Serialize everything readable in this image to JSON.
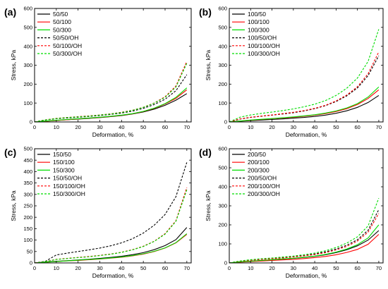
{
  "chart_data": [
    {
      "type": "line",
      "panel_label": "(a)",
      "xlabel": "Deformation, %",
      "ylabel": "Stress, kPa",
      "xlim": [
        0,
        72
      ],
      "ylim": [
        0,
        600
      ],
      "xticks": [
        0,
        10,
        20,
        30,
        40,
        50,
        60,
        70
      ],
      "yticks": [
        0,
        100,
        200,
        300,
        400,
        500,
        600
      ],
      "legend_position": "top-left",
      "x": [
        0,
        5,
        10,
        15,
        20,
        25,
        30,
        35,
        40,
        45,
        50,
        55,
        60,
        65,
        70
      ],
      "series": [
        {
          "name": "50/50",
          "color": "#000000",
          "dashed": false,
          "values": [
            0,
            4,
            8,
            12,
            15,
            19,
            23,
            28,
            34,
            42,
            53,
            68,
            88,
            115,
            150
          ]
        },
        {
          "name": "50/100",
          "color": "#ff0000",
          "dashed": false,
          "values": [
            0,
            4,
            8,
            12,
            16,
            20,
            24,
            29,
            35,
            43,
            55,
            72,
            95,
            125,
            170
          ]
        },
        {
          "name": "50/300",
          "color": "#00dd00",
          "dashed": false,
          "values": [
            0,
            5,
            9,
            13,
            17,
            21,
            25,
            30,
            36,
            44,
            56,
            73,
            97,
            130,
            180
          ]
        },
        {
          "name": "50/50/OH",
          "color": "#000000",
          "dashed": true,
          "values": [
            0,
            10,
            17,
            21,
            25,
            29,
            34,
            40,
            47,
            57,
            72,
            92,
            120,
            165,
            250
          ]
        },
        {
          "name": "50/100/OH",
          "color": "#ff0000",
          "dashed": true,
          "values": [
            0,
            11,
            19,
            24,
            28,
            32,
            37,
            43,
            51,
            62,
            78,
            100,
            133,
            190,
            320
          ]
        },
        {
          "name": "50/300/OH",
          "color": "#00dd00",
          "dashed": true,
          "values": [
            0,
            11,
            18,
            23,
            27,
            31,
            36,
            42,
            50,
            61,
            77,
            99,
            130,
            185,
            310
          ]
        }
      ]
    },
    {
      "type": "line",
      "panel_label": "(b)",
      "xlabel": "Deformation, %",
      "ylabel": "Stress, kPa",
      "xlim": [
        0,
        72
      ],
      "ylim": [
        0,
        600
      ],
      "xticks": [
        0,
        10,
        20,
        30,
        40,
        50,
        60,
        70
      ],
      "yticks": [
        0,
        100,
        200,
        300,
        400,
        500,
        600
      ],
      "legend_position": "top-left",
      "x": [
        0,
        5,
        10,
        15,
        20,
        25,
        30,
        35,
        40,
        45,
        50,
        55,
        60,
        65,
        70
      ],
      "series": [
        {
          "name": "100/50",
          "color": "#000000",
          "dashed": false,
          "values": [
            0,
            4,
            7,
            10,
            13,
            16,
            20,
            24,
            29,
            36,
            46,
            59,
            77,
            103,
            140
          ]
        },
        {
          "name": "100/100",
          "color": "#ff0000",
          "dashed": false,
          "values": [
            0,
            5,
            9,
            13,
            17,
            21,
            25,
            30,
            36,
            44,
            55,
            70,
            92,
            124,
            170
          ]
        },
        {
          "name": "100/300",
          "color": "#00dd00",
          "dashed": false,
          "values": [
            0,
            5,
            10,
            14,
            18,
            22,
            27,
            32,
            38,
            47,
            58,
            74,
            97,
            132,
            185
          ]
        },
        {
          "name": "100/50/OH",
          "color": "#000000",
          "dashed": true,
          "values": [
            0,
            15,
            24,
            30,
            36,
            42,
            49,
            58,
            70,
            86,
            108,
            138,
            180,
            245,
            350
          ]
        },
        {
          "name": "100/100/OH",
          "color": "#ff0000",
          "dashed": true,
          "values": [
            0,
            16,
            25,
            31,
            37,
            44,
            51,
            60,
            72,
            88,
            111,
            142,
            186,
            255,
            370
          ]
        },
        {
          "name": "100/300/OH",
          "color": "#00dd00",
          "dashed": true,
          "values": [
            0,
            25,
            37,
            45,
            52,
            60,
            69,
            80,
            94,
            113,
            140,
            178,
            232,
            320,
            490
          ]
        }
      ]
    },
    {
      "type": "line",
      "panel_label": "(c)",
      "xlabel": "Deformation, %",
      "ylabel": "Stress, kPa",
      "xlim": [
        0,
        72
      ],
      "ylim": [
        0,
        500
      ],
      "xticks": [
        0,
        10,
        20,
        30,
        40,
        50,
        60,
        70
      ],
      "yticks": [
        0,
        50,
        100,
        150,
        200,
        250,
        300,
        350,
        400,
        450,
        500
      ],
      "legend_position": "top-left",
      "x": [
        0,
        5,
        10,
        15,
        20,
        25,
        30,
        35,
        40,
        45,
        50,
        55,
        60,
        65,
        70
      ],
      "series": [
        {
          "name": "150/50",
          "color": "#000000",
          "dashed": false,
          "values": [
            0,
            4,
            7,
            10,
            13,
            16,
            20,
            24,
            29,
            36,
            45,
            58,
            76,
            102,
            155
          ]
        },
        {
          "name": "150/100",
          "color": "#ff0000",
          "dashed": false,
          "values": [
            0,
            3,
            6,
            9,
            11,
            14,
            17,
            21,
            25,
            31,
            39,
            50,
            65,
            88,
            125
          ]
        },
        {
          "name": "150/300",
          "color": "#00dd00",
          "dashed": false,
          "values": [
            0,
            3,
            6,
            9,
            12,
            15,
            18,
            22,
            26,
            32,
            40,
            51,
            66,
            89,
            128
          ]
        },
        {
          "name": "150/50/OH",
          "color": "#000000",
          "dashed": true,
          "values": [
            0,
            7,
            35,
            43,
            50,
            57,
            65,
            75,
            88,
            106,
            131,
            165,
            212,
            290,
            440
          ]
        },
        {
          "name": "150/100/OH",
          "color": "#ff0000",
          "dashed": true,
          "values": [
            0,
            6,
            16,
            20,
            24,
            28,
            33,
            39,
            47,
            58,
            73,
            95,
            128,
            185,
            330
          ]
        },
        {
          "name": "150/300/OH",
          "color": "#00dd00",
          "dashed": true,
          "values": [
            0,
            6,
            15,
            19,
            23,
            27,
            32,
            38,
            46,
            57,
            72,
            94,
            126,
            182,
            320
          ]
        }
      ]
    },
    {
      "type": "line",
      "panel_label": "(d)",
      "xlabel": "Deformation, %",
      "ylabel": "Stress, kPa",
      "xlim": [
        0,
        72
      ],
      "ylim": [
        0,
        600
      ],
      "xticks": [
        0,
        10,
        20,
        30,
        40,
        50,
        60,
        70
      ],
      "yticks": [
        0,
        100,
        200,
        300,
        400,
        500,
        600
      ],
      "legend_position": "top-left",
      "x": [
        0,
        5,
        10,
        15,
        20,
        25,
        30,
        35,
        40,
        45,
        50,
        55,
        60,
        65,
        70
      ],
      "series": [
        {
          "name": "200/50",
          "color": "#000000",
          "dashed": false,
          "values": [
            0,
            5,
            9,
            13,
            16,
            20,
            24,
            29,
            35,
            43,
            54,
            69,
            90,
            120,
            170
          ]
        },
        {
          "name": "200/100",
          "color": "#ff0000",
          "dashed": false,
          "values": [
            0,
            4,
            7,
            10,
            13,
            16,
            19,
            23,
            28,
            34,
            43,
            55,
            71,
            98,
            150
          ]
        },
        {
          "name": "200/300",
          "color": "#00dd00",
          "dashed": false,
          "values": [
            0,
            5,
            9,
            13,
            17,
            21,
            25,
            30,
            36,
            45,
            57,
            73,
            96,
            131,
            200
          ]
        },
        {
          "name": "200/50/OH",
          "color": "#000000",
          "dashed": true,
          "values": [
            0,
            9,
            15,
            20,
            24,
            28,
            33,
            39,
            47,
            58,
            73,
            93,
            122,
            172,
            280
          ]
        },
        {
          "name": "200/100/OH",
          "color": "#ff0000",
          "dashed": true,
          "values": [
            0,
            8,
            14,
            18,
            22,
            26,
            31,
            37,
            44,
            54,
            68,
            87,
            115,
            162,
            260
          ]
        },
        {
          "name": "200/300/OH",
          "color": "#00dd00",
          "dashed": true,
          "values": [
            0,
            10,
            17,
            22,
            26,
            31,
            36,
            43,
            52,
            64,
            81,
            104,
            137,
            195,
            340
          ]
        }
      ]
    }
  ]
}
